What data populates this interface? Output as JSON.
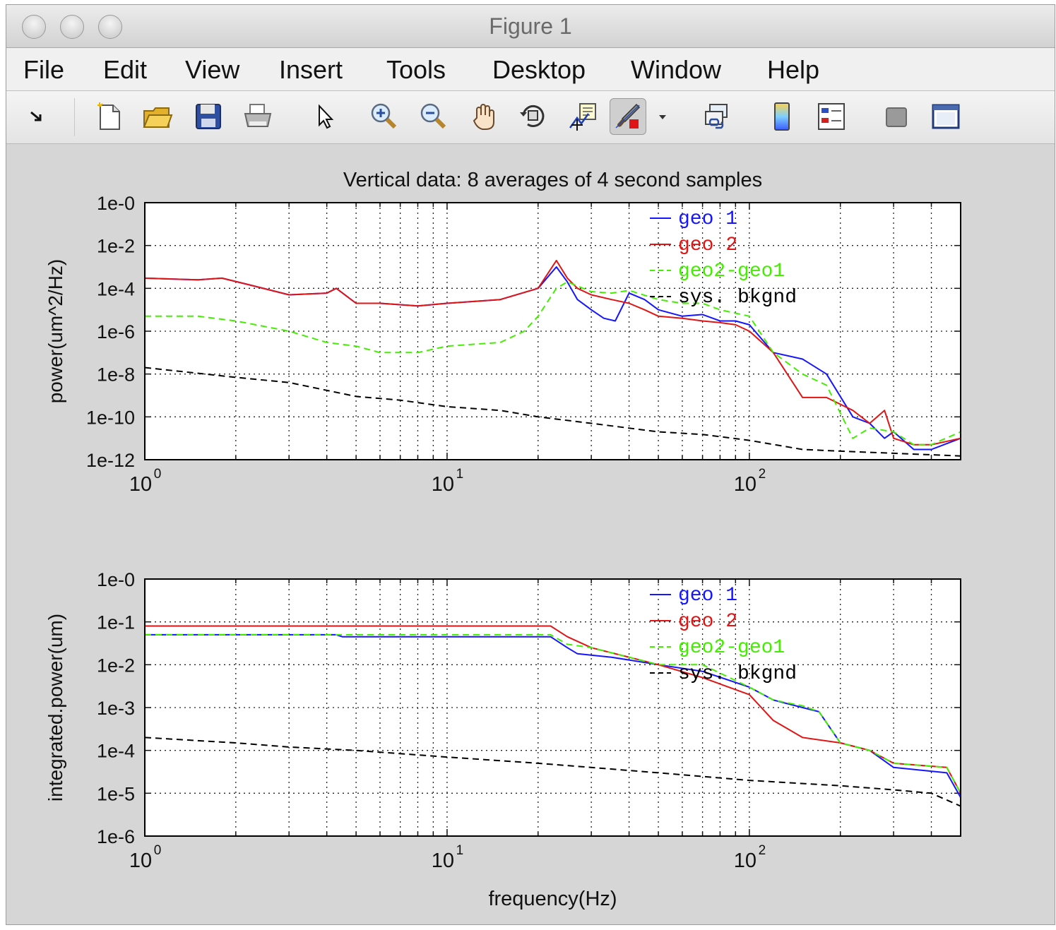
{
  "window": {
    "title": "Figure 1"
  },
  "menubar": {
    "items": [
      "File",
      "Edit",
      "View",
      "Insert",
      "Tools",
      "Desktop",
      "Window",
      "Help"
    ]
  },
  "toolbar": {
    "icons": [
      "docked-arrow-icon",
      "new-figure-icon",
      "open-file-icon",
      "save-icon",
      "print-icon",
      "edit-plot-cursor-icon",
      "zoom-in-icon",
      "zoom-out-icon",
      "pan-hand-icon",
      "rotate-3d-icon",
      "data-cursor-icon",
      "brush-icon",
      "brush-dropdown-icon",
      "link-plot-icon",
      "colorbar-icon",
      "legend-icon",
      "hide-plot-tools-icon",
      "show-plot-tools-icon"
    ]
  },
  "colors": {
    "geo1": "#1515ff",
    "geo2": "#e01515",
    "diff": "#44ee00",
    "bkgnd": "#000000"
  },
  "chart_data": [
    {
      "type": "line",
      "title": "Vertical data: 8 averages of 4 second samples",
      "xlabel": "",
      "ylabel": "power(um^2/Hz)",
      "xscale": "log",
      "yscale": "log",
      "xlim": [
        1,
        500
      ],
      "ylim": [
        1e-12,
        1
      ],
      "xticklabels": [
        "10",
        "10",
        "10"
      ],
      "xtickexponents": [
        "0",
        "1",
        "2"
      ],
      "yticklabels": [
        "1e-0",
        "1e-2",
        "1e-4",
        "1e-6",
        "1e-8",
        "1e-10",
        "1e-12"
      ],
      "grid": true,
      "legend_position": "top-right",
      "series": [
        {
          "name": "geo 1",
          "style": "solid",
          "x": [
            1,
            1.5,
            1.8,
            2.2,
            3,
            4,
            4.3,
            5,
            6,
            8,
            10,
            15,
            20,
            23,
            25,
            27,
            30,
            33,
            36,
            40,
            45,
            50,
            60,
            70,
            80,
            90,
            100,
            120,
            150,
            180,
            220,
            250,
            280,
            300,
            350,
            400,
            500
          ],
          "y": [
            0.0003,
            0.00025,
            0.0003,
            0.00015,
            5e-05,
            6e-05,
            0.0001,
            2e-05,
            2e-05,
            1.5e-05,
            2e-05,
            3e-05,
            0.0001,
            0.001,
            0.0002,
            3e-05,
            1e-05,
            4e-06,
            3e-06,
            6e-05,
            3e-05,
            1e-05,
            5e-06,
            6e-06,
            3e-06,
            3e-06,
            2e-06,
            1e-07,
            5e-08,
            1e-08,
            1e-10,
            5e-11,
            1e-11,
            2e-11,
            3e-12,
            3e-12,
            1e-11
          ]
        },
        {
          "name": "geo 2",
          "style": "solid",
          "x": [
            1,
            1.5,
            1.8,
            2.2,
            3,
            4,
            4.3,
            5,
            6,
            8,
            10,
            15,
            20,
            23,
            25,
            27,
            30,
            35,
            40,
            45,
            50,
            60,
            70,
            80,
            90,
            100,
            120,
            150,
            180,
            220,
            250,
            280,
            300,
            350,
            400,
            500
          ],
          "y": [
            0.0003,
            0.00025,
            0.0003,
            0.00015,
            5e-05,
            6e-05,
            0.0001,
            2e-05,
            2e-05,
            1.5e-05,
            2e-05,
            3e-05,
            0.0001,
            0.002,
            0.0003,
            0.0001,
            5e-05,
            3e-05,
            2e-05,
            1e-05,
            5e-06,
            4e-06,
            3e-06,
            2.5e-06,
            2e-06,
            1e-06,
            1e-07,
            8e-10,
            8e-10,
            2e-10,
            5e-11,
            2e-10,
            1e-11,
            5e-12,
            5e-12,
            1e-11
          ]
        },
        {
          "name": "geo2-geo1",
          "style": "dashed",
          "x": [
            1,
            1.5,
            2,
            3,
            4,
            5,
            6,
            8,
            10,
            15,
            18,
            20,
            23,
            25,
            30,
            35,
            40,
            50,
            60,
            70,
            80,
            100,
            120,
            150,
            180,
            220,
            250,
            300,
            350,
            400,
            500
          ],
          "y": [
            5e-06,
            5e-06,
            3e-06,
            1e-06,
            3e-07,
            2e-07,
            1e-07,
            1e-07,
            2e-07,
            3e-07,
            1e-06,
            5e-06,
            0.0001,
            0.0002,
            7e-05,
            6e-05,
            8e-05,
            3e-05,
            2e-05,
            2e-05,
            1e-05,
            5e-06,
            1e-07,
            1e-08,
            3e-09,
            1e-11,
            3e-11,
            2e-11,
            5e-12,
            5e-12,
            2e-11
          ]
        },
        {
          "name": "sys. bkgnd",
          "style": "dashed",
          "x": [
            1,
            2,
            3,
            5,
            7,
            10,
            15,
            20,
            30,
            50,
            70,
            100,
            150,
            200,
            300,
            500
          ],
          "y": [
            2e-08,
            7e-09,
            4e-09,
            9e-10,
            6e-10,
            3e-10,
            2e-10,
            1e-10,
            5e-11,
            2e-11,
            1.5e-11,
            8e-12,
            3e-12,
            2.5e-12,
            2e-12,
            1.5e-12
          ]
        }
      ]
    },
    {
      "type": "line",
      "title": "",
      "xlabel": "frequency(Hz)",
      "ylabel": "integrated.power(um)",
      "xscale": "log",
      "yscale": "log",
      "xlim": [
        1,
        500
      ],
      "ylim": [
        1e-06,
        1
      ],
      "xticklabels": [
        "10",
        "10",
        "10"
      ],
      "xtickexponents": [
        "0",
        "1",
        "2"
      ],
      "yticklabels": [
        "1e-0",
        "1e-1",
        "1e-2",
        "1e-3",
        "1e-4",
        "1e-5",
        "1e-6"
      ],
      "grid": true,
      "legend_position": "top-right",
      "series": [
        {
          "name": "geo 1",
          "style": "solid",
          "x": [
            1,
            4.3,
            4.5,
            22,
            25,
            27,
            35,
            50,
            70,
            100,
            120,
            150,
            170,
            200,
            250,
            300,
            450,
            500
          ],
          "y": [
            0.05,
            0.05,
            0.045,
            0.045,
            0.025,
            0.018,
            0.015,
            0.01,
            0.007,
            0.003,
            0.0015,
            0.001,
            0.0008,
            0.00015,
            0.0001,
            4e-05,
            3e-05,
            8e-06
          ]
        },
        {
          "name": "geo 2",
          "style": "solid",
          "x": [
            1,
            22,
            25,
            30,
            40,
            50,
            70,
            100,
            120,
            150,
            200,
            250,
            300,
            450,
            500
          ],
          "y": [
            0.08,
            0.08,
            0.045,
            0.025,
            0.015,
            0.01,
            0.005,
            0.002,
            0.0005,
            0.0002,
            0.00015,
            0.0001,
            5e-05,
            4e-05,
            1e-05
          ]
        },
        {
          "name": "geo2-geo1",
          "style": "dashed",
          "x": [
            1,
            22,
            25,
            30,
            40,
            50,
            70,
            100,
            120,
            150,
            170,
            200,
            250,
            300,
            450,
            500
          ],
          "y": [
            0.05,
            0.05,
            0.03,
            0.025,
            0.015,
            0.01,
            0.01,
            0.003,
            0.0015,
            0.0011,
            0.0008,
            0.00015,
            0.0001,
            5e-05,
            4e-05,
            1e-05
          ]
        },
        {
          "name": "sys. bkgnd",
          "style": "dashed",
          "x": [
            1,
            2,
            3,
            5,
            10,
            20,
            30,
            50,
            100,
            200,
            300,
            400,
            500
          ],
          "y": [
            0.0002,
            0.00015,
            0.00012,
            0.0001,
            7e-05,
            5e-05,
            4e-05,
            3e-05,
            2e-05,
            1.5e-05,
            1.2e-05,
            1e-05,
            5e-06
          ]
        }
      ]
    }
  ]
}
